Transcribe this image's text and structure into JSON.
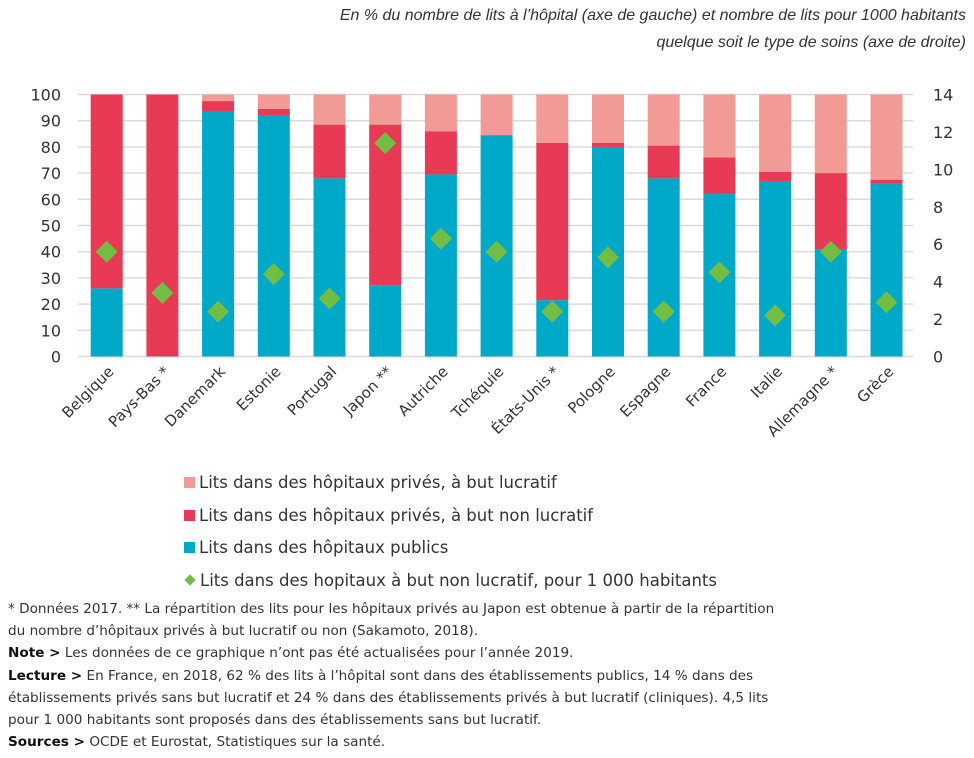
{
  "chart_data": {
    "type": "bar",
    "stacked": true,
    "title": "",
    "subtitle_lines": [
      "En % du nombre de lits à l’hôpital (axe de gauche) et nombre de lits pour 1000 habitants",
      "quelque soit le type de soins (axe de droite)"
    ],
    "xlabel": "",
    "ylabel": "",
    "ylim": [
      0,
      100
    ],
    "y_ticks": [
      0,
      10,
      20,
      30,
      40,
      50,
      60,
      70,
      80,
      90,
      100
    ],
    "y2lim": [
      0,
      14
    ],
    "y2_ticks": [
      0,
      2,
      4,
      6,
      8,
      10,
      12,
      14
    ],
    "grid": true,
    "legend_position": "bottom",
    "categories": [
      "Belgique",
      "Pays-Bas *",
      "Danemark",
      "Estonie",
      "Portugal",
      "Japon **",
      "Autriche",
      "Tchéquie",
      "États-Unis *",
      "Pologne",
      "Espagne",
      "France",
      "Italie",
      "Allemagne *",
      "Grèce"
    ],
    "series": [
      {
        "name": "Lits dans des hôpitaux publics",
        "axis": "left",
        "kind": "bar",
        "color": "#00A9C8",
        "values": [
          26,
          0,
          93.5,
          92,
          68,
          27,
          69.5,
          84.5,
          21.5,
          80,
          68,
          62,
          67,
          41,
          66
        ]
      },
      {
        "name": "Lits dans des hôpitaux privés, à but non lucratif",
        "axis": "left",
        "kind": "bar",
        "color": "#E83A55",
        "values": [
          74,
          100,
          4,
          2.5,
          20.5,
          61.5,
          16.5,
          0,
          60,
          1.5,
          12.5,
          14,
          3.5,
          29,
          1.5
        ]
      },
      {
        "name": "Lits dans des hôpitaux privés, à but lucratif",
        "axis": "left",
        "kind": "bar",
        "color": "#F29B96",
        "values": [
          0,
          0,
          2.5,
          5.5,
          11.5,
          11.5,
          14,
          15.5,
          18.5,
          18.5,
          19.5,
          24,
          29.5,
          30,
          32.5
        ]
      },
      {
        "name": "Lits dans des hopitaux à but non lucratif, pour 1 000 habitants",
        "axis": "right",
        "kind": "scatter",
        "marker": "diamond",
        "color": "#72BE44",
        "values": [
          5.6,
          3.4,
          2.4,
          4.4,
          3.1,
          11.4,
          6.3,
          5.6,
          2.4,
          5.3,
          2.4,
          4.5,
          2.2,
          5.6,
          2.9
        ]
      }
    ],
    "legend_order": [
      2,
      1,
      0,
      3
    ]
  },
  "notes": {
    "line1": "* Données 2017. ** La répartition des lits pour les hôpitaux privés au Japon est obtenue à partir de la répartition",
    "line2": "du nombre d’hôpitaux privés à but lucratif ou non (Sakamoto, 2018).",
    "note_label": "Note >",
    "note_text": " Les données de ce graphique n’ont pas été actualisées pour l’année 2019.",
    "lecture_label": "Lecture >",
    "lecture_text_1": " En France, en 2018, 62 % des lits à l’hôpital sont dans des établissements publics, 14 % dans des",
    "lecture_text_2": "établissements privés sans but lucratif et 24 % dans des établissements privés à but lucratif (cliniques). 4,5 lits",
    "lecture_text_3": "pour 1 000 habitants sont proposés dans des établissements sans but lucratif.",
    "sources_label": "Sources >",
    "sources_text": " OCDE et Eurostat, Statistiques sur la santé."
  }
}
